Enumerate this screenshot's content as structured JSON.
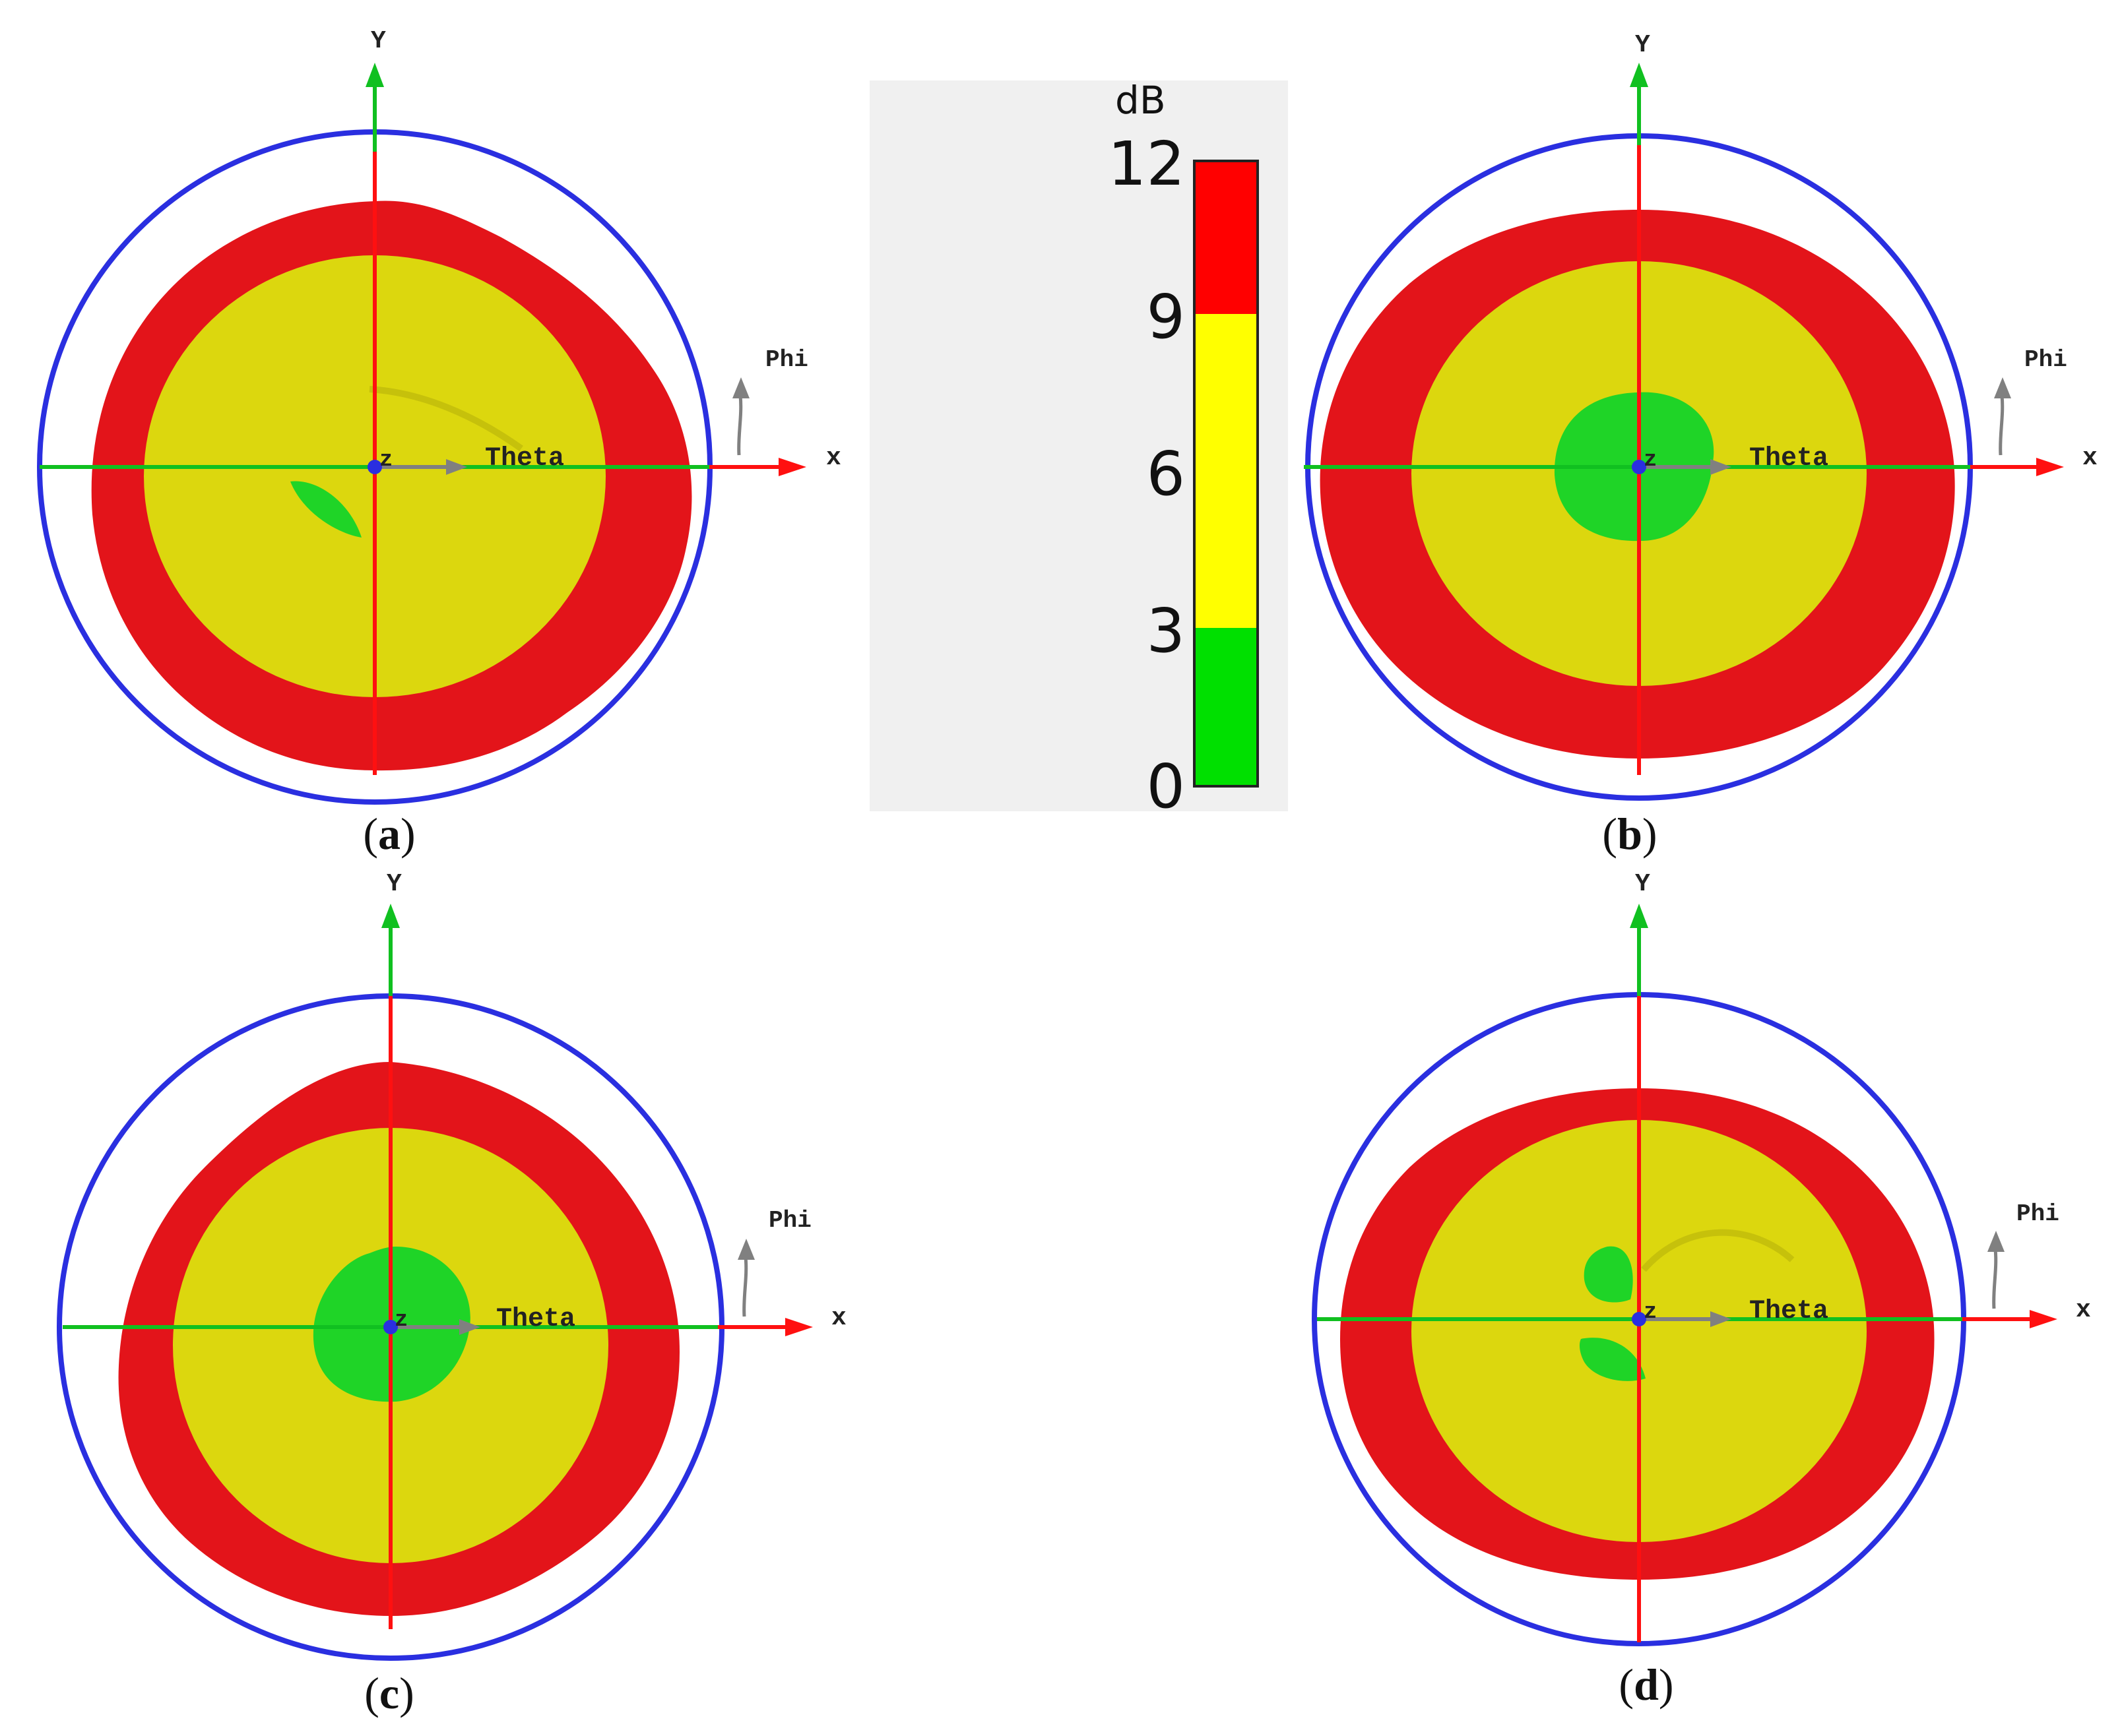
{
  "legend": {
    "unit": "dB",
    "ticks": [
      "12",
      "9",
      "6",
      "3",
      "0"
    ],
    "bands": [
      {
        "from": 9,
        "to": 12,
        "color": "#ff0000"
      },
      {
        "from": 3,
        "to": 9,
        "color": "#ffff00"
      },
      {
        "from": 0,
        "to": 3,
        "color": "#00e000"
      }
    ]
  },
  "colors": {
    "outer_ring": "#e3141a",
    "inner_disk": "#dcd70e",
    "center_spot": "#1fd427",
    "boundary_circle": "#2a2fe0",
    "x_axis": "#ff1010",
    "y_axis": "#10c020",
    "theta_arrow": "#808080",
    "origin_dot": "#2a2fe0"
  },
  "panels": [
    {
      "id": "a",
      "caption": "(a)",
      "x_label": "x",
      "y_label": "Y",
      "theta_label": "Theta",
      "phi_label": "Phi",
      "z_label": "z",
      "icon": "radiation-pattern-icon"
    },
    {
      "id": "b",
      "caption": "(b)",
      "x_label": "x",
      "y_label": "Y",
      "theta_label": "Theta",
      "phi_label": "Phi",
      "z_label": "z",
      "icon": "radiation-pattern-icon"
    },
    {
      "id": "c",
      "caption": "(c)",
      "x_label": "x",
      "y_label": "Y",
      "theta_label": "Theta",
      "phi_label": "Phi",
      "z_label": "z",
      "icon": "radiation-pattern-icon"
    },
    {
      "id": "d",
      "caption": "(d)",
      "x_label": "x",
      "y_label": "Y",
      "theta_label": "Theta",
      "phi_label": "Phi",
      "z_label": "z",
      "icon": "radiation-pattern-icon"
    }
  ]
}
